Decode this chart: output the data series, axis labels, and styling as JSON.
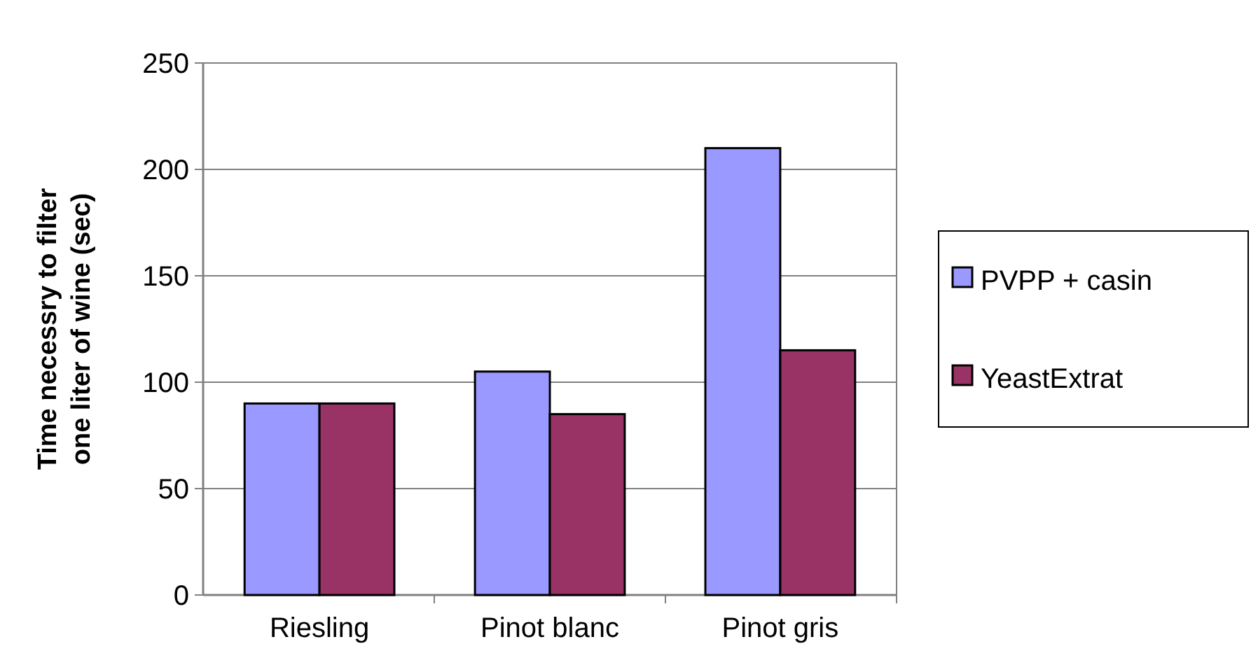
{
  "chart_data": {
    "type": "bar",
    "ylabel": "Time necessry to filter one liter of wine (sec)",
    "categories": [
      "Riesling",
      "Pinot blanc",
      "Pinot gris"
    ],
    "series": [
      {
        "name": "PVPP + casin",
        "color": "#9999ff",
        "values": [
          90,
          105,
          210
        ]
      },
      {
        "name": "YeastExtrat",
        "color": "#993366",
        "values": [
          90,
          85,
          115
        ]
      }
    ],
    "ylim": [
      0,
      250
    ],
    "yticks": [
      0,
      50,
      100,
      150,
      200,
      250
    ],
    "grid": "y",
    "legend": "right"
  }
}
